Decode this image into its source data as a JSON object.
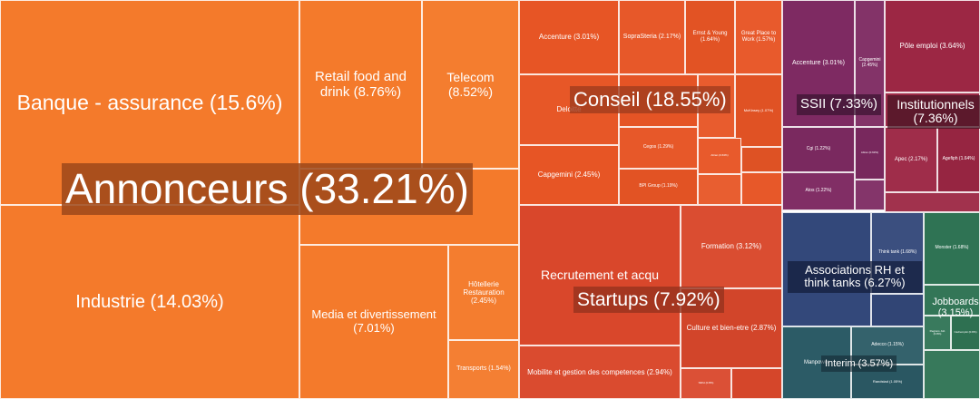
{
  "chart_data": {
    "type": "treemap",
    "groups": [
      {
        "name": "Annonceurs (33.21%)",
        "share": 33.21,
        "color": "#f47a2b",
        "tiles": [
          {
            "label": "Banque - assurance (15.6%)",
            "value": 15.6
          },
          {
            "label": "Industrie (14.03%)",
            "value": 14.03
          },
          {
            "label": "Retail food and drink (8.76%)",
            "value": 8.76
          },
          {
            "label": "Telecom (8.52%)",
            "value": 8.52
          },
          {
            "label": "Media et divertissement (7.01%)",
            "value": 7.01
          },
          {
            "label": "Hôtellerie Restauration (2.45%)",
            "value": 2.45
          },
          {
            "label": "Transports (1.54%)",
            "value": 1.54
          }
        ]
      },
      {
        "name": "Conseil (18.55%)",
        "share": 18.55,
        "color": "#e75525",
        "tiles": [
          {
            "label": "Accenture (3.01%)",
            "value": 3.01
          },
          {
            "label": "SopraSteria (2.17%)",
            "value": 2.17
          },
          {
            "label": "Ernst & Young (1.64%)",
            "value": 1.64
          },
          {
            "label": "Great Place to Work (1.57%)",
            "value": 1.57
          },
          {
            "label": "Deloitte",
            "value": null
          },
          {
            "label": "McKinsey (1.07%)",
            "value": 1.07
          },
          {
            "label": "Cegos (1.29%)",
            "value": 1.29
          },
          {
            "label": "BPI Group (1.19%)",
            "value": 1.19
          },
          {
            "label": "Altran (0.63%)",
            "value": 0.63
          },
          {
            "label": "Capgemini (2.45%)",
            "value": 2.45
          }
        ]
      },
      {
        "name": "SSII (7.33%)",
        "share": 7.33,
        "color": "#7e2a62",
        "tiles": [
          {
            "label": "Accenture (3.01%)",
            "value": 3.01
          },
          {
            "label": "Capgemini (2.45%)",
            "value": 2.45
          },
          {
            "label": "Cgi (1.22%)",
            "value": 1.22
          },
          {
            "label": "Atos (1.22%)",
            "value": 1.22
          },
          {
            "label": "Altran (0.63%)",
            "value": 0.63
          }
        ]
      },
      {
        "name": "Institutionnels (7.36%)",
        "share": 7.36,
        "color": "#9c2744",
        "tiles": [
          {
            "label": "Pôle emploi (3.64%)",
            "value": 3.64
          },
          {
            "label": "Apec (2.17%)",
            "value": 2.17
          },
          {
            "label": "Agefiph (1.64%)",
            "value": 1.64
          }
        ]
      },
      {
        "name": "Startups (7.92%)",
        "share": 7.92,
        "color": "#d9472b",
        "tiles": [
          {
            "label": "Recrutement et acqu",
            "value": null
          },
          {
            "label": "Formation (3.12%)",
            "value": 3.12
          },
          {
            "label": "Culture et bien-etre (2.87%)",
            "value": 2.87
          },
          {
            "label": "Mobilite et gestion des competences (2.94%)",
            "value": 2.94
          },
          {
            "label": "SIRH (0.8%)",
            "value": 0.8
          }
        ]
      },
      {
        "name": "Associations RH et think tanks (6.27%)",
        "share": 6.27,
        "color": "#33487a",
        "tiles": [
          {
            "label": "Think tank (1.68%)",
            "value": 1.68
          }
        ]
      },
      {
        "name": "Jobboards (3.15%)",
        "share": 3.15,
        "color": "#2f7354",
        "tiles": [
          {
            "label": "Monster (1.68%)",
            "value": 1.68
          },
          {
            "label": "Regions Job (0.8%)",
            "value": 0.8
          },
          {
            "label": "Cadremploi (0.8%)",
            "value": 0.8
          }
        ]
      },
      {
        "name": "Interim (3.57%)",
        "share": 3.57,
        "color": "#2c5b66",
        "tiles": [
          {
            "label": "Manpower",
            "value": null
          },
          {
            "label": "Adecco (1.15%)",
            "value": 1.15
          },
          {
            "label": "Randstad (1.05%)",
            "value": 1.05
          }
        ]
      }
    ]
  }
}
